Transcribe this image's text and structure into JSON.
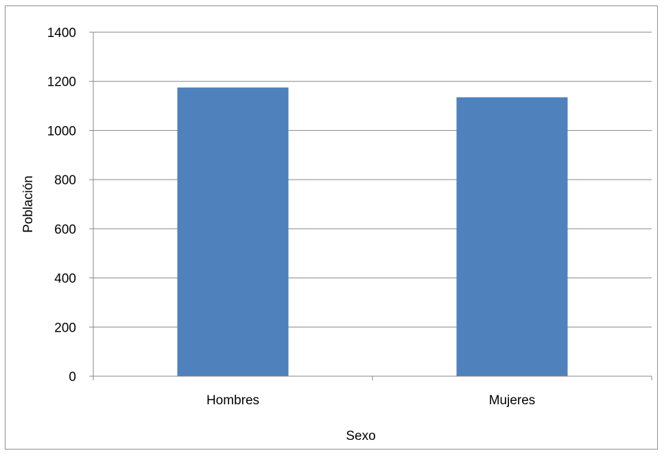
{
  "chart_data": {
    "type": "bar",
    "title": "",
    "xlabel": "Sexo",
    "ylabel": "Población",
    "categories": [
      "Hombres",
      "Mujeres"
    ],
    "values": [
      1175,
      1135
    ],
    "ylim": [
      0,
      1400
    ],
    "yticks": [
      0,
      200,
      400,
      600,
      800,
      1000,
      1200,
      1400
    ],
    "ytick_labels": [
      "0",
      "200",
      "400",
      "600",
      "800",
      "1000",
      "1200",
      "1400"
    ],
    "grid": true,
    "legend": "none",
    "bar_color": "#4f81bd",
    "grid_color": "#868686"
  }
}
